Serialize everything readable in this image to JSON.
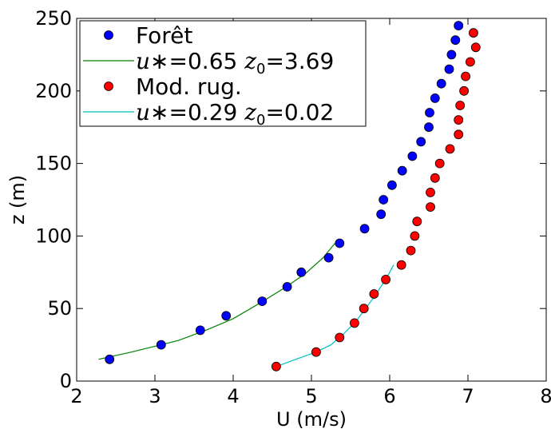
{
  "chart_data": {
    "type": "scatter",
    "xlabel": "U (m/s)",
    "ylabel": "z (m)",
    "xlim": [
      2,
      8
    ],
    "ylim": [
      0,
      250
    ],
    "xticks": [
      2,
      3,
      4,
      5,
      6,
      7,
      8
    ],
    "yticks": [
      0,
      50,
      100,
      150,
      200,
      250
    ],
    "grid": false,
    "legend_placement": "top-left",
    "series": [
      {
        "name": "Forêt",
        "kind": "scatter",
        "color": "#0000ff",
        "x": [
          2.42,
          3.08,
          3.58,
          3.91,
          4.37,
          4.69,
          4.87,
          5.22,
          5.36,
          5.68,
          5.89,
          5.92,
          6.03,
          6.16,
          6.29,
          6.4,
          6.5,
          6.51,
          6.58,
          6.66,
          6.76,
          6.79,
          6.84,
          6.88
        ],
        "y": [
          15,
          25,
          35,
          45,
          55,
          65,
          75,
          85,
          95,
          105,
          115,
          125,
          135,
          145,
          155,
          165,
          175,
          185,
          195,
          205,
          215,
          225,
          235,
          245
        ]
      },
      {
        "name": "u∗=0.65 z0=3.69",
        "label_parts": [
          "u",
          "∗",
          "=0.65 ",
          "z",
          "0",
          "=3.69"
        ],
        "kind": "line",
        "color": "#008000",
        "x": [
          2.28,
          2.45,
          2.7,
          3.0,
          3.3,
          3.65,
          4.0,
          4.35,
          4.65,
          4.92,
          5.15,
          5.3
        ],
        "y": [
          15,
          17,
          20,
          24,
          28,
          35,
          43,
          54,
          64,
          74,
          85,
          95
        ]
      },
      {
        "name": "Mod. rug.",
        "kind": "scatter",
        "color": "#ff0000",
        "x": [
          4.55,
          5.06,
          5.36,
          5.55,
          5.67,
          5.8,
          5.95,
          6.15,
          6.27,
          6.32,
          6.35,
          6.52,
          6.52,
          6.58,
          6.64,
          6.77,
          6.88,
          6.88,
          6.9,
          6.95,
          6.97,
          7.03,
          7.1,
          7.07
        ],
        "y": [
          10,
          20,
          30,
          40,
          50,
          60,
          70,
          80,
          90,
          100,
          110,
          120,
          130,
          140,
          150,
          160,
          170,
          180,
          190,
          200,
          210,
          220,
          230,
          240
        ]
      },
      {
        "name": "u∗=0.29 z0=0.02",
        "label_parts": [
          "u",
          "∗",
          "=0.29 ",
          "z",
          "0",
          "=0.02"
        ],
        "kind": "line",
        "color": "#00bfbf",
        "x": [
          4.55,
          4.8,
          5.06,
          5.25,
          5.4,
          5.55,
          5.68,
          5.8,
          5.9,
          5.98,
          6.05
        ],
        "y": [
          10,
          15,
          20,
          25,
          32,
          40,
          49,
          58,
          66,
          73,
          80
        ]
      }
    ]
  }
}
